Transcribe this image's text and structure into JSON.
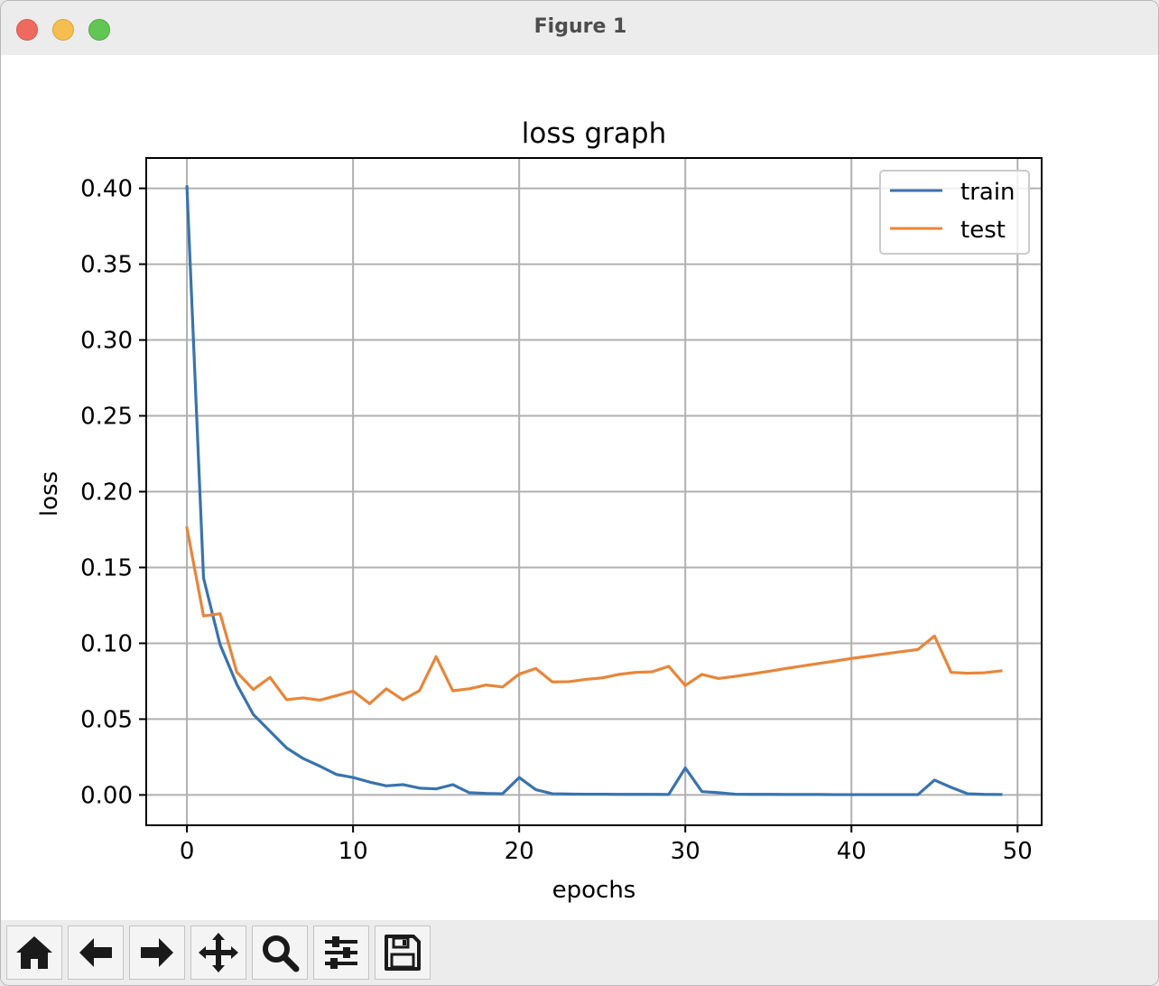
{
  "window": {
    "title": "Figure 1"
  },
  "toolbar": {
    "buttons": [
      {
        "name": "home",
        "icon": "home-icon"
      },
      {
        "name": "back",
        "icon": "arrow-left-icon"
      },
      {
        "name": "forward",
        "icon": "arrow-right-icon"
      },
      {
        "name": "pan",
        "icon": "move-icon"
      },
      {
        "name": "zoom",
        "icon": "magnifier-icon"
      },
      {
        "name": "configure-subplots",
        "icon": "sliders-icon"
      },
      {
        "name": "save",
        "icon": "floppy-disk-icon"
      }
    ]
  },
  "chart_data": {
    "type": "line",
    "title": "loss graph",
    "xlabel": "epochs",
    "ylabel": "loss",
    "xlim": [
      -2.45,
      51.45
    ],
    "ylim": [
      -0.02,
      0.42
    ],
    "xticks": [
      0,
      10,
      20,
      30,
      40,
      50
    ],
    "xtick_labels": [
      "0",
      "10",
      "20",
      "30",
      "40",
      "50"
    ],
    "yticks": [
      0.0,
      0.05,
      0.1,
      0.15,
      0.2,
      0.25,
      0.3,
      0.35,
      0.4
    ],
    "ytick_labels": [
      "0.00",
      "0.05",
      "0.10",
      "0.15",
      "0.20",
      "0.25",
      "0.30",
      "0.35",
      "0.40"
    ],
    "grid": true,
    "legend_position": "upper-right",
    "x": [
      0,
      1,
      2,
      3,
      4,
      5,
      6,
      7,
      8,
      9,
      10,
      11,
      12,
      13,
      14,
      15,
      16,
      17,
      18,
      19,
      20,
      21,
      22,
      23,
      24,
      25,
      26,
      27,
      28,
      29,
      30,
      31,
      32,
      33,
      34,
      35,
      36,
      37,
      38,
      39,
      40,
      41,
      42,
      43,
      44,
      45,
      46,
      47,
      48,
      49
    ],
    "series": [
      {
        "name": "train",
        "color": "#3a73ad",
        "values": [
          0.401,
          0.143,
          0.099,
          0.073,
          0.053,
          0.042,
          0.031,
          0.024,
          0.019,
          0.0135,
          0.0115,
          0.0085,
          0.006,
          0.0068,
          0.0045,
          0.004,
          0.0068,
          0.0015,
          0.001,
          0.0008,
          0.0115,
          0.0035,
          0.0008,
          0.0006,
          0.0005,
          0.0005,
          0.0004,
          0.0004,
          0.0004,
          0.0003,
          0.0178,
          0.0022,
          0.0015,
          0.0005,
          0.0004,
          0.0004,
          0.0003,
          0.0003,
          0.0003,
          0.0002,
          0.0002,
          0.0002,
          0.0002,
          0.0002,
          0.0002,
          0.0098,
          0.005,
          0.0008,
          0.0004,
          0.0003
        ]
      },
      {
        "name": "test",
        "color": "#e8863a",
        "values": [
          0.176,
          0.118,
          0.1195,
          0.081,
          0.0695,
          0.0775,
          0.0628,
          0.064,
          0.0625,
          0.0655,
          0.0685,
          0.0602,
          0.07,
          0.0627,
          0.0688,
          0.0912,
          0.0687,
          0.07,
          0.0725,
          0.0712,
          0.0797,
          0.0834,
          0.0745,
          0.0747,
          0.0762,
          0.0772,
          0.0795,
          0.0808,
          0.0812,
          0.0848,
          0.0722,
          0.0795,
          0.0768,
          0.0782,
          0.0798,
          0.0815,
          0.0833,
          0.085,
          0.0866,
          0.0883,
          0.09,
          0.0915,
          0.093,
          0.0945,
          0.0959,
          0.1048,
          0.0808,
          0.0803,
          0.0806,
          0.0818
        ]
      }
    ]
  }
}
